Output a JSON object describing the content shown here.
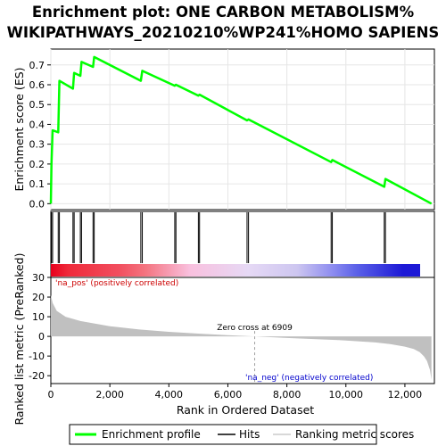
{
  "chart_data": {
    "type": "line",
    "title": [
      "Enrichment plot: ONE CARBON METABOLISM%",
      "WIKIPATHWAYS_20210210%WP241%HOMO SAPIENS"
    ],
    "xlabel": "Rank in Ordered Dataset",
    "xlim": [
      0,
      13000
    ],
    "x_ticks": [
      0,
      2000,
      4000,
      6000,
      8000,
      10000,
      12000
    ],
    "x_tick_labels": [
      "0",
      "2,000",
      "4,000",
      "6,000",
      "8,000",
      "10,000",
      "12,000"
    ],
    "n_genes": 12900,
    "enrichment": {
      "ylabel": "Enrichment score (ES)",
      "ylim": [
        -0.03,
        0.78
      ],
      "y_ticks": [
        0.0,
        0.1,
        0.2,
        0.3,
        0.4,
        0.5,
        0.6,
        0.7
      ],
      "y_tick_labels": [
        "0.0",
        "0.1",
        "0.2",
        "0.3",
        "0.4",
        "0.5",
        "0.6",
        "0.7"
      ],
      "series": {
        "name": "Enrichment profile",
        "color": "#00ff00",
        "x": [
          0,
          20,
          60,
          250,
          290,
          750,
          790,
          1000,
          1040,
          1430,
          1470,
          3050,
          3100,
          4200,
          4240,
          5000,
          5040,
          6650,
          6700,
          9500,
          9540,
          11300,
          11340,
          12900
        ],
        "y": [
          0.0,
          0.2,
          0.37,
          0.36,
          0.62,
          0.58,
          0.66,
          0.645,
          0.715,
          0.69,
          0.74,
          0.62,
          0.67,
          0.595,
          0.6,
          0.545,
          0.55,
          0.42,
          0.425,
          0.21,
          0.22,
          0.085,
          0.125,
          0.0
        ]
      }
    },
    "hits": {
      "name": "Hits",
      "positions": [
        20,
        60,
        250,
        290,
        750,
        790,
        1000,
        1040,
        1430,
        1470,
        3050,
        3100,
        4200,
        4240,
        5000,
        5040,
        6650,
        6700,
        9500,
        9540,
        11300,
        11340
      ]
    },
    "ranked_metric": {
      "name": "Ranking metric scores",
      "ylabel": "Ranked list metric (PreRanked)",
      "ylim": [
        -24,
        30
      ],
      "y_ticks": [
        -20,
        -10,
        0,
        10,
        20,
        30
      ],
      "y_tick_labels": [
        "-20",
        "-10",
        "0",
        "10",
        "20",
        "30"
      ],
      "curve_x": [
        0,
        60,
        200,
        500,
        1000,
        2000,
        3000,
        4000,
        5000,
        6000,
        6909,
        8000,
        9000,
        10000,
        11000,
        11500,
        12000,
        12300,
        12500,
        12650,
        12750,
        12850,
        12900
      ],
      "curve_y": [
        21,
        17,
        13,
        10,
        7.8,
        5.2,
        3.5,
        2.3,
        1.4,
        0.6,
        0,
        -0.8,
        -1.4,
        -2.1,
        -3.1,
        -3.9,
        -5.2,
        -6.4,
        -8.0,
        -10.2,
        -12.5,
        -17,
        -22
      ],
      "zero_cross": 6909,
      "zero_cross_label": "Zero cross at 6909",
      "pos_label": "'na_pos' (positively correlated)",
      "neg_label": "'na_neg' (negatively correlated)"
    },
    "color_bar_stops": [
      [
        0,
        "#e8001c"
      ],
      [
        600,
        "#ef2a3a"
      ],
      [
        2400,
        "#f24f5f"
      ],
      [
        3300,
        "#f47480"
      ],
      [
        4850,
        "#f9c0de"
      ],
      [
        6900,
        "#e6d9f5"
      ],
      [
        8600,
        "#cdc6f0"
      ],
      [
        9800,
        "#8f8ef0"
      ],
      [
        10700,
        "#5a60e8"
      ],
      [
        12300,
        "#1d19d6"
      ],
      [
        12900,
        "#1d19d6"
      ]
    ],
    "legend": [
      {
        "name": "Enrichment profile",
        "color": "#00ff00"
      },
      {
        "name": "Hits",
        "color": "#000000"
      },
      {
        "name": "Ranking metric scores",
        "color": "#cccccc"
      }
    ]
  }
}
